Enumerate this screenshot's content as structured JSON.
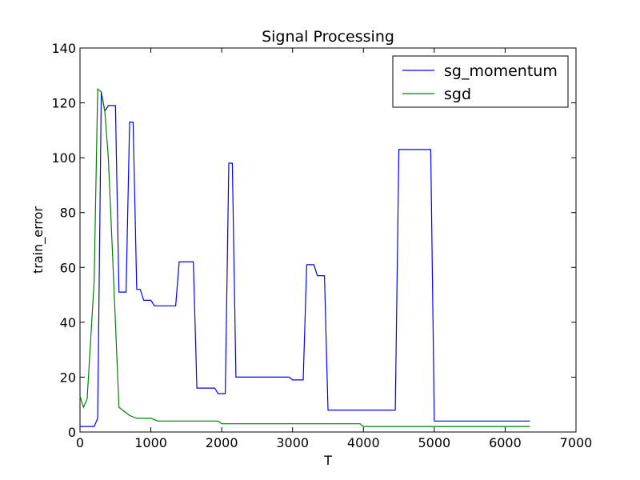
{
  "chart_data": {
    "type": "line",
    "title": "Signal Processing",
    "xlabel": "T",
    "ylabel": "train_error",
    "xlim": [
      0,
      7000
    ],
    "ylim": [
      0,
      140
    ],
    "xticks": [
      0,
      1000,
      2000,
      3000,
      4000,
      5000,
      6000,
      7000
    ],
    "yticks": [
      0,
      20,
      40,
      60,
      80,
      100,
      120,
      140
    ],
    "grid": false,
    "legend_position": "top-right",
    "series": [
      {
        "name": "sg_momentum",
        "color": "#0000ff",
        "x": [
          0,
          100,
          200,
          250,
          300,
          350,
          400,
          450,
          500,
          550,
          600,
          650,
          700,
          750,
          800,
          850,
          900,
          950,
          1000,
          1050,
          1100,
          1350,
          1400,
          1450,
          1600,
          1650,
          1700,
          1850,
          1900,
          1950,
          2000,
          2050,
          2100,
          2150,
          2200,
          2850,
          2900,
          2950,
          3000,
          3100,
          3150,
          3200,
          3250,
          3300,
          3350,
          3400,
          3450,
          3500,
          3550,
          4400,
          4450,
          4500,
          4550,
          4900,
          4950,
          5000,
          6350
        ],
        "y": [
          2,
          2,
          2,
          5,
          124,
          117,
          119,
          119,
          119,
          51,
          51,
          51,
          113,
          113,
          52,
          52,
          48,
          48,
          48,
          46,
          46,
          46,
          62,
          62,
          62,
          16,
          16,
          16,
          16,
          14,
          14,
          14,
          98,
          98,
          20,
          20,
          20,
          20,
          19,
          19,
          19,
          61,
          61,
          61,
          57,
          57,
          57,
          8,
          8,
          8,
          8,
          103,
          103,
          103,
          103,
          4,
          4
        ]
      },
      {
        "name": "sgd",
        "color": "#008000",
        "x": [
          0,
          50,
          100,
          200,
          250,
          300,
          350,
          400,
          450,
          500,
          550,
          600,
          700,
          800,
          1000,
          1100,
          1150,
          1950,
          2000,
          3950,
          4000,
          6350
        ],
        "y": [
          13,
          9,
          12,
          55,
          125,
          124,
          117,
          100,
          70,
          40,
          9,
          8,
          6,
          5,
          5,
          4,
          4,
          4,
          3,
          3,
          2,
          2
        ]
      }
    ]
  }
}
